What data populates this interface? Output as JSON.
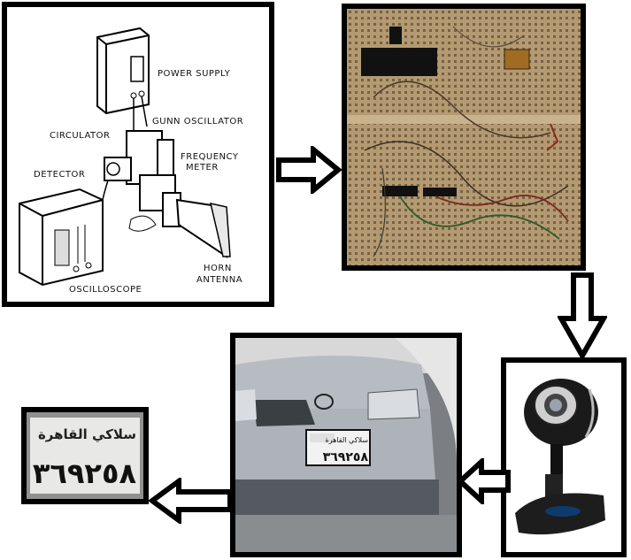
{
  "equipment_labels": {
    "power_supply": "POWER SUPPLY",
    "circulator": "CIRCULATOR",
    "gunn_oscillator": "GUNN OSCILLATOR",
    "detector": "DETECTOR",
    "frequency": "FREQUENCY",
    "meter": "METER",
    "oscilloscope": "OSCILLOSCOPE",
    "horn": "HORN",
    "antenna": "ANTENNA"
  },
  "plate": {
    "top": "سلاكي القاهرة",
    "number": "٣٦٩٢٥٨"
  },
  "colors": {
    "border": "#000000",
    "breadboard": "#b49a72",
    "car": "#b7bcc2"
  },
  "icons": [
    "arrow-right-icon",
    "arrow-down-icon",
    "arrow-left-icon"
  ]
}
